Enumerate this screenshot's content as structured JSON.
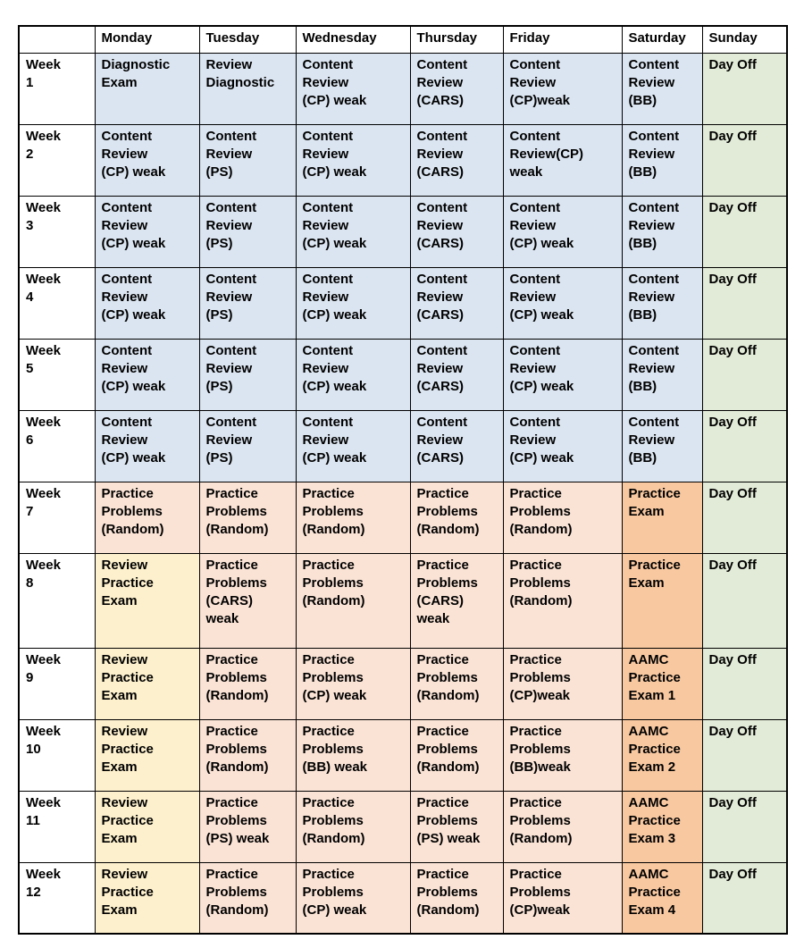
{
  "table": {
    "corner_label": "",
    "day_headers": [
      "Monday",
      "Tuesday",
      "Wednesday",
      "Thursday",
      "Friday",
      "Saturday",
      "Sunday"
    ],
    "colors": {
      "blue": "#dbe5f1",
      "green": "#e2ebd7",
      "peach": "#fae3d5",
      "yellow": "#fdf0cc",
      "orange": "#f8c8a0",
      "header_bg": "#ffffff",
      "border": "#000000",
      "text": "#000000"
    },
    "weeks": [
      {
        "label": "Week\n1",
        "cells": [
          {
            "text": "Diagnostic\nExam",
            "bg": "blue"
          },
          {
            "text": "Review\nDiagnostic",
            "bg": "blue"
          },
          {
            "text": "Content\nReview\n(CP) weak",
            "bg": "blue"
          },
          {
            "text": "Content\nReview\n(CARS)",
            "bg": "blue"
          },
          {
            "text": "Content\nReview\n(CP)weak",
            "bg": "blue"
          },
          {
            "text": "Content\nReview\n(BB)",
            "bg": "blue"
          },
          {
            "text": "Day Off",
            "bg": "green"
          }
        ]
      },
      {
        "label": "Week\n2",
        "cells": [
          {
            "text": "Content\nReview\n(CP) weak",
            "bg": "blue"
          },
          {
            "text": "Content\nReview\n(PS)",
            "bg": "blue"
          },
          {
            "text": "Content\nReview\n(CP) weak",
            "bg": "blue"
          },
          {
            "text": "Content\nReview\n(CARS)",
            "bg": "blue"
          },
          {
            "text": "Content\nReview(CP)\nweak",
            "bg": "blue"
          },
          {
            "text": "Content\nReview\n(BB)",
            "bg": "blue"
          },
          {
            "text": "Day Off",
            "bg": "green"
          }
        ]
      },
      {
        "label": "Week\n3",
        "cells": [
          {
            "text": "Content\nReview\n(CP) weak",
            "bg": "blue"
          },
          {
            "text": "Content\nReview\n(PS)",
            "bg": "blue"
          },
          {
            "text": "Content\nReview\n(CP) weak",
            "bg": "blue"
          },
          {
            "text": "Content\nReview\n(CARS)",
            "bg": "blue"
          },
          {
            "text": "Content\nReview\n(CP) weak",
            "bg": "blue"
          },
          {
            "text": "Content\nReview\n(BB)",
            "bg": "blue"
          },
          {
            "text": "Day Off",
            "bg": "green"
          }
        ]
      },
      {
        "label": "Week\n4",
        "cells": [
          {
            "text": "Content\nReview\n(CP) weak",
            "bg": "blue"
          },
          {
            "text": "Content\nReview\n(PS)",
            "bg": "blue"
          },
          {
            "text": "Content\nReview\n(CP) weak",
            "bg": "blue"
          },
          {
            "text": "Content\nReview\n(CARS)",
            "bg": "blue"
          },
          {
            "text": "Content\nReview\n(CP) weak",
            "bg": "blue"
          },
          {
            "text": "Content\nReview\n(BB)",
            "bg": "blue"
          },
          {
            "text": "Day Off",
            "bg": "green"
          }
        ]
      },
      {
        "label": "Week\n5",
        "cells": [
          {
            "text": "Content\nReview\n(CP) weak",
            "bg": "blue"
          },
          {
            "text": "Content\nReview\n(PS)",
            "bg": "blue"
          },
          {
            "text": "Content\nReview\n(CP) weak",
            "bg": "blue"
          },
          {
            "text": "Content\nReview\n(CARS)",
            "bg": "blue"
          },
          {
            "text": "Content\nReview\n(CP) weak",
            "bg": "blue"
          },
          {
            "text": "Content\nReview\n(BB)",
            "bg": "blue"
          },
          {
            "text": "Day Off",
            "bg": "green"
          }
        ]
      },
      {
        "label": "Week\n6",
        "cells": [
          {
            "text": "Content\nReview\n(CP) weak",
            "bg": "blue"
          },
          {
            "text": "Content\nReview\n(PS)",
            "bg": "blue"
          },
          {
            "text": "Content\nReview\n(CP) weak",
            "bg": "blue"
          },
          {
            "text": "Content\nReview\n(CARS)",
            "bg": "blue"
          },
          {
            "text": "Content\nReview\n(CP) weak",
            "bg": "blue"
          },
          {
            "text": "Content\nReview\n(BB)",
            "bg": "blue"
          },
          {
            "text": "Day Off",
            "bg": "green"
          }
        ]
      },
      {
        "label": "Week\n7",
        "cells": [
          {
            "text": "Practice\nProblems\n(Random)",
            "bg": "peach"
          },
          {
            "text": "Practice\nProblems\n(Random)",
            "bg": "peach"
          },
          {
            "text": "Practice\nProblems\n(Random)",
            "bg": "peach"
          },
          {
            "text": "Practice\nProblems\n(Random)",
            "bg": "peach"
          },
          {
            "text": "Practice\nProblems\n(Random)",
            "bg": "peach"
          },
          {
            "text": "Practice\nExam",
            "bg": "orange"
          },
          {
            "text": "Day Off",
            "bg": "green"
          }
        ]
      },
      {
        "label": "Week\n8",
        "cells": [
          {
            "text": "Review\nPractice\nExam",
            "bg": "yellow"
          },
          {
            "text": "Practice\nProblems\n(CARS)\nweak",
            "bg": "peach"
          },
          {
            "text": "Practice\nProblems\n(Random)",
            "bg": "peach"
          },
          {
            "text": "Practice\nProblems\n(CARS)\nweak",
            "bg": "peach"
          },
          {
            "text": "Practice\nProblems\n(Random)",
            "bg": "peach"
          },
          {
            "text": "Practice\nExam",
            "bg": "orange"
          },
          {
            "text": "Day Off",
            "bg": "green"
          }
        ]
      },
      {
        "label": "Week\n9",
        "cells": [
          {
            "text": "Review\nPractice\nExam",
            "bg": "yellow"
          },
          {
            "text": "Practice\nProblems\n(Random)",
            "bg": "peach"
          },
          {
            "text": "Practice\nProblems\n(CP) weak",
            "bg": "peach"
          },
          {
            "text": "Practice\nProblems\n(Random)",
            "bg": "peach"
          },
          {
            "text": "Practice\nProblems\n(CP)weak",
            "bg": "peach"
          },
          {
            "text": "AAMC\nPractice\nExam 1",
            "bg": "orange"
          },
          {
            "text": "Day Off",
            "bg": "green"
          }
        ]
      },
      {
        "label": "Week\n10",
        "cells": [
          {
            "text": "Review\nPractice\nExam",
            "bg": "yellow"
          },
          {
            "text": "Practice\nProblems\n(Random)",
            "bg": "peach"
          },
          {
            "text": "Practice\nProblems\n(BB) weak",
            "bg": "peach"
          },
          {
            "text": "Practice\nProblems\n(Random)",
            "bg": "peach"
          },
          {
            "text": "Practice\nProblems\n(BB)weak",
            "bg": "peach"
          },
          {
            "text": "AAMC\nPractice\nExam 2",
            "bg": "orange"
          },
          {
            "text": "Day Off",
            "bg": "green"
          }
        ]
      },
      {
        "label": "Week\n11",
        "cells": [
          {
            "text": "Review\nPractice\nExam",
            "bg": "yellow"
          },
          {
            "text": "Practice\nProblems\n(PS) weak",
            "bg": "peach"
          },
          {
            "text": "Practice\nProblems\n(Random)",
            "bg": "peach"
          },
          {
            "text": "Practice\nProblems\n(PS) weak",
            "bg": "peach"
          },
          {
            "text": "Practice\nProblems\n(Random)",
            "bg": "peach"
          },
          {
            "text": "AAMC\nPractice\nExam 3",
            "bg": "orange"
          },
          {
            "text": "Day Off",
            "bg": "green"
          }
        ]
      },
      {
        "label": "Week\n12",
        "cells": [
          {
            "text": "Review\nPractice\nExam",
            "bg": "yellow"
          },
          {
            "text": "Practice\nProblems\n(Random)",
            "bg": "peach"
          },
          {
            "text": "Practice\nProblems\n(CP) weak",
            "bg": "peach"
          },
          {
            "text": "Practice\nProblems\n(Random)",
            "bg": "peach"
          },
          {
            "text": "Practice\nProblems\n(CP)weak",
            "bg": "peach"
          },
          {
            "text": "AAMC\nPractice\nExam 4",
            "bg": "orange"
          },
          {
            "text": "Day Off",
            "bg": "green"
          }
        ]
      }
    ]
  }
}
